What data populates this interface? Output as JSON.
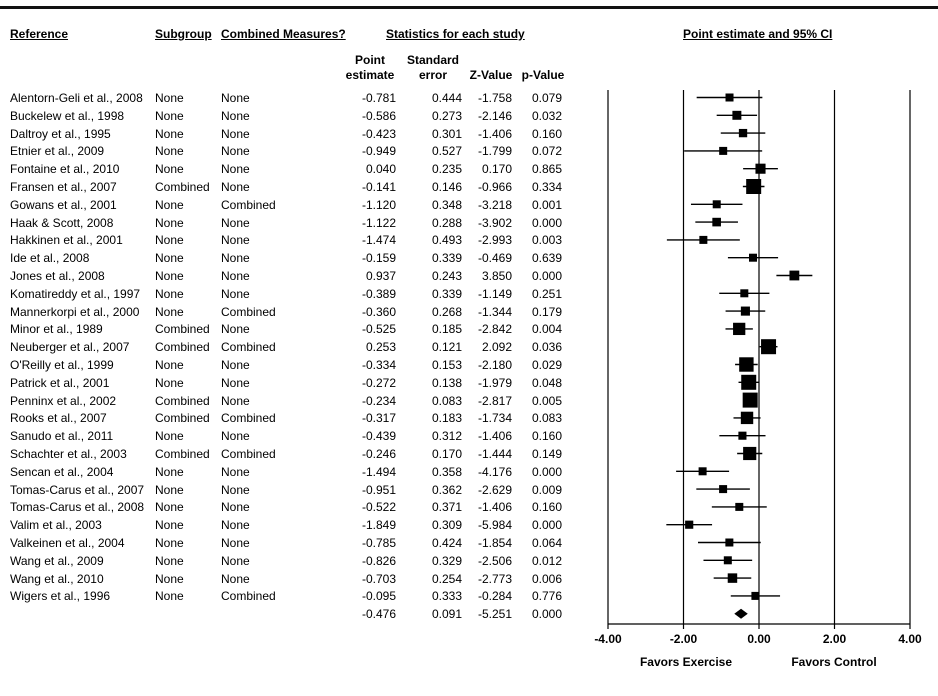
{
  "headers": {
    "reference": "Reference",
    "subgroup": "Subgroup",
    "combined": "Combined Measures?",
    "statistics": "Statistics for each study",
    "point_ci": "Point estimate and 95% CI",
    "point_estimate_l1": "Point",
    "point_estimate_l2": "estimate",
    "standard_error_l1": "Standard",
    "standard_error_l2": "error",
    "zvalue": "Z-Value",
    "pvalue": "p-Value"
  },
  "rows": [
    {
      "ref": "Alentorn-Geli et al., 2008",
      "subgroup": "None",
      "combined": "None",
      "pe": "-0.781",
      "se": "0.444",
      "z": "-1.758",
      "p": "0.079"
    },
    {
      "ref": "Buckelew et al., 1998",
      "subgroup": "None",
      "combined": "None",
      "pe": "-0.586",
      "se": "0.273",
      "z": "-2.146",
      "p": "0.032"
    },
    {
      "ref": "Daltroy et al., 1995",
      "subgroup": "None",
      "combined": "None",
      "pe": "-0.423",
      "se": "0.301",
      "z": "-1.406",
      "p": "0.160"
    },
    {
      "ref": "Etnier et al., 2009",
      "subgroup": "None",
      "combined": "None",
      "pe": "-0.949",
      "se": "0.527",
      "z": "-1.799",
      "p": "0.072"
    },
    {
      "ref": "Fontaine et al., 2010",
      "subgroup": "None",
      "combined": "None",
      "pe": "0.040",
      "se": "0.235",
      "z": "0.170",
      "p": "0.865"
    },
    {
      "ref": "Fransen et al., 2007",
      "subgroup": "Combined",
      "combined": "None",
      "pe": "-0.141",
      "se": "0.146",
      "z": "-0.966",
      "p": "0.334"
    },
    {
      "ref": "Gowans et al., 2001",
      "subgroup": "None",
      "combined": "Combined",
      "pe": "-1.120",
      "se": "0.348",
      "z": "-3.218",
      "p": "0.001"
    },
    {
      "ref": "Haak & Scott, 2008",
      "subgroup": "None",
      "combined": "None",
      "pe": "-1.122",
      "se": "0.288",
      "z": "-3.902",
      "p": "0.000"
    },
    {
      "ref": "Hakkinen et al., 2001",
      "subgroup": "None",
      "combined": "None",
      "pe": "-1.474",
      "se": "0.493",
      "z": "-2.993",
      "p": "0.003"
    },
    {
      "ref": "Ide et al., 2008",
      "subgroup": "None",
      "combined": "None",
      "pe": "-0.159",
      "se": "0.339",
      "z": "-0.469",
      "p": "0.639"
    },
    {
      "ref": "Jones et al., 2008",
      "subgroup": "None",
      "combined": "None",
      "pe": "0.937",
      "se": "0.243",
      "z": "3.850",
      "p": "0.000"
    },
    {
      "ref": "Komatireddy et al., 1997",
      "subgroup": "None",
      "combined": "None",
      "pe": "-0.389",
      "se": "0.339",
      "z": "-1.149",
      "p": "0.251"
    },
    {
      "ref": "Mannerkorpi et al., 2000",
      "subgroup": "None",
      "combined": "Combined",
      "pe": "-0.360",
      "se": "0.268",
      "z": "-1.344",
      "p": "0.179"
    },
    {
      "ref": "Minor et al., 1989",
      "subgroup": "Combined",
      "combined": "None",
      "pe": "-0.525",
      "se": "0.185",
      "z": "-2.842",
      "p": "0.004"
    },
    {
      "ref": "Neuberger et al., 2007",
      "subgroup": "Combined",
      "combined": "Combined",
      "pe": "0.253",
      "se": "0.121",
      "z": "2.092",
      "p": "0.036"
    },
    {
      "ref": "O'Reilly et al., 1999",
      "subgroup": "None",
      "combined": "None",
      "pe": "-0.334",
      "se": "0.153",
      "z": "-2.180",
      "p": "0.029"
    },
    {
      "ref": "Patrick et al., 2001",
      "subgroup": "None",
      "combined": "None",
      "pe": "-0.272",
      "se": "0.138",
      "z": "-1.979",
      "p": "0.048"
    },
    {
      "ref": "Penninx et al., 2002",
      "subgroup": "Combined",
      "combined": "None",
      "pe": "-0.234",
      "se": "0.083",
      "z": "-2.817",
      "p": "0.005"
    },
    {
      "ref": "Rooks et al., 2007",
      "subgroup": "Combined",
      "combined": "Combined",
      "pe": "-0.317",
      "se": "0.183",
      "z": "-1.734",
      "p": "0.083"
    },
    {
      "ref": "Sanudo et al., 2011",
      "subgroup": "None",
      "combined": "None",
      "pe": "-0.439",
      "se": "0.312",
      "z": "-1.406",
      "p": "0.160"
    },
    {
      "ref": "Schachter et al., 2003",
      "subgroup": "Combined",
      "combined": "Combined",
      "pe": "-0.246",
      "se": "0.170",
      "z": "-1.444",
      "p": "0.149"
    },
    {
      "ref": "Sencan et al., 2004",
      "subgroup": "None",
      "combined": "None",
      "pe": "-1.494",
      "se": "0.358",
      "z": "-4.176",
      "p": "0.000"
    },
    {
      "ref": "Tomas-Carus et al., 2007",
      "subgroup": "None",
      "combined": "None",
      "pe": "-0.951",
      "se": "0.362",
      "z": "-2.629",
      "p": "0.009"
    },
    {
      "ref": "Tomas-Carus et al., 2008",
      "subgroup": "None",
      "combined": "None",
      "pe": "-0.522",
      "se": "0.371",
      "z": "-1.406",
      "p": "0.160"
    },
    {
      "ref": "Valim et al., 2003",
      "subgroup": "None",
      "combined": "None",
      "pe": "-1.849",
      "se": "0.309",
      "z": "-5.984",
      "p": "0.000"
    },
    {
      "ref": "Valkeinen et al., 2004",
      "subgroup": "None",
      "combined": "None",
      "pe": "-0.785",
      "se": "0.424",
      "z": "-1.854",
      "p": "0.064"
    },
    {
      "ref": "Wang et al., 2009",
      "subgroup": "None",
      "combined": "None",
      "pe": "-0.826",
      "se": "0.329",
      "z": "-2.506",
      "p": "0.012"
    },
    {
      "ref": "Wang et al., 2010",
      "subgroup": "None",
      "combined": "None",
      "pe": "-0.703",
      "se": "0.254",
      "z": "-2.773",
      "p": "0.006"
    },
    {
      "ref": "Wigers et al., 1996",
      "subgroup": "None",
      "combined": "Combined",
      "pe": "-0.095",
      "se": "0.333",
      "z": "-0.284",
      "p": "0.776"
    }
  ],
  "summary": {
    "pe": "-0.476",
    "se": "0.091",
    "z": "-5.251",
    "p": "0.000"
  },
  "chart_data": {
    "type": "forest",
    "xlim": [
      -4,
      4
    ],
    "ticks": [
      -4,
      -2,
      0,
      2,
      4
    ],
    "tick_labels": [
      "-4.00",
      "-2.00",
      "0.00",
      "2.00",
      "4.00"
    ],
    "xlabel_left": "Favors Exercise",
    "xlabel_right": "Favors Control",
    "ci_multiplier": 1.96,
    "point_estimates": [
      -0.781,
      -0.586,
      -0.423,
      -0.949,
      0.04,
      -0.141,
      -1.12,
      -1.122,
      -1.474,
      -0.159,
      0.937,
      -0.389,
      -0.36,
      -0.525,
      0.253,
      -0.334,
      -0.272,
      -0.234,
      -0.317,
      -0.439,
      -0.246,
      -1.494,
      -0.951,
      -0.522,
      -1.849,
      -0.785,
      -0.826,
      -0.703,
      -0.095
    ],
    "standard_errors": [
      0.444,
      0.273,
      0.301,
      0.527,
      0.235,
      0.146,
      0.348,
      0.288,
      0.493,
      0.339,
      0.243,
      0.339,
      0.268,
      0.185,
      0.121,
      0.153,
      0.138,
      0.083,
      0.183,
      0.312,
      0.17,
      0.358,
      0.362,
      0.371,
      0.309,
      0.424,
      0.329,
      0.254,
      0.333
    ],
    "summary_estimate": -0.476,
    "summary_se": 0.091
  }
}
